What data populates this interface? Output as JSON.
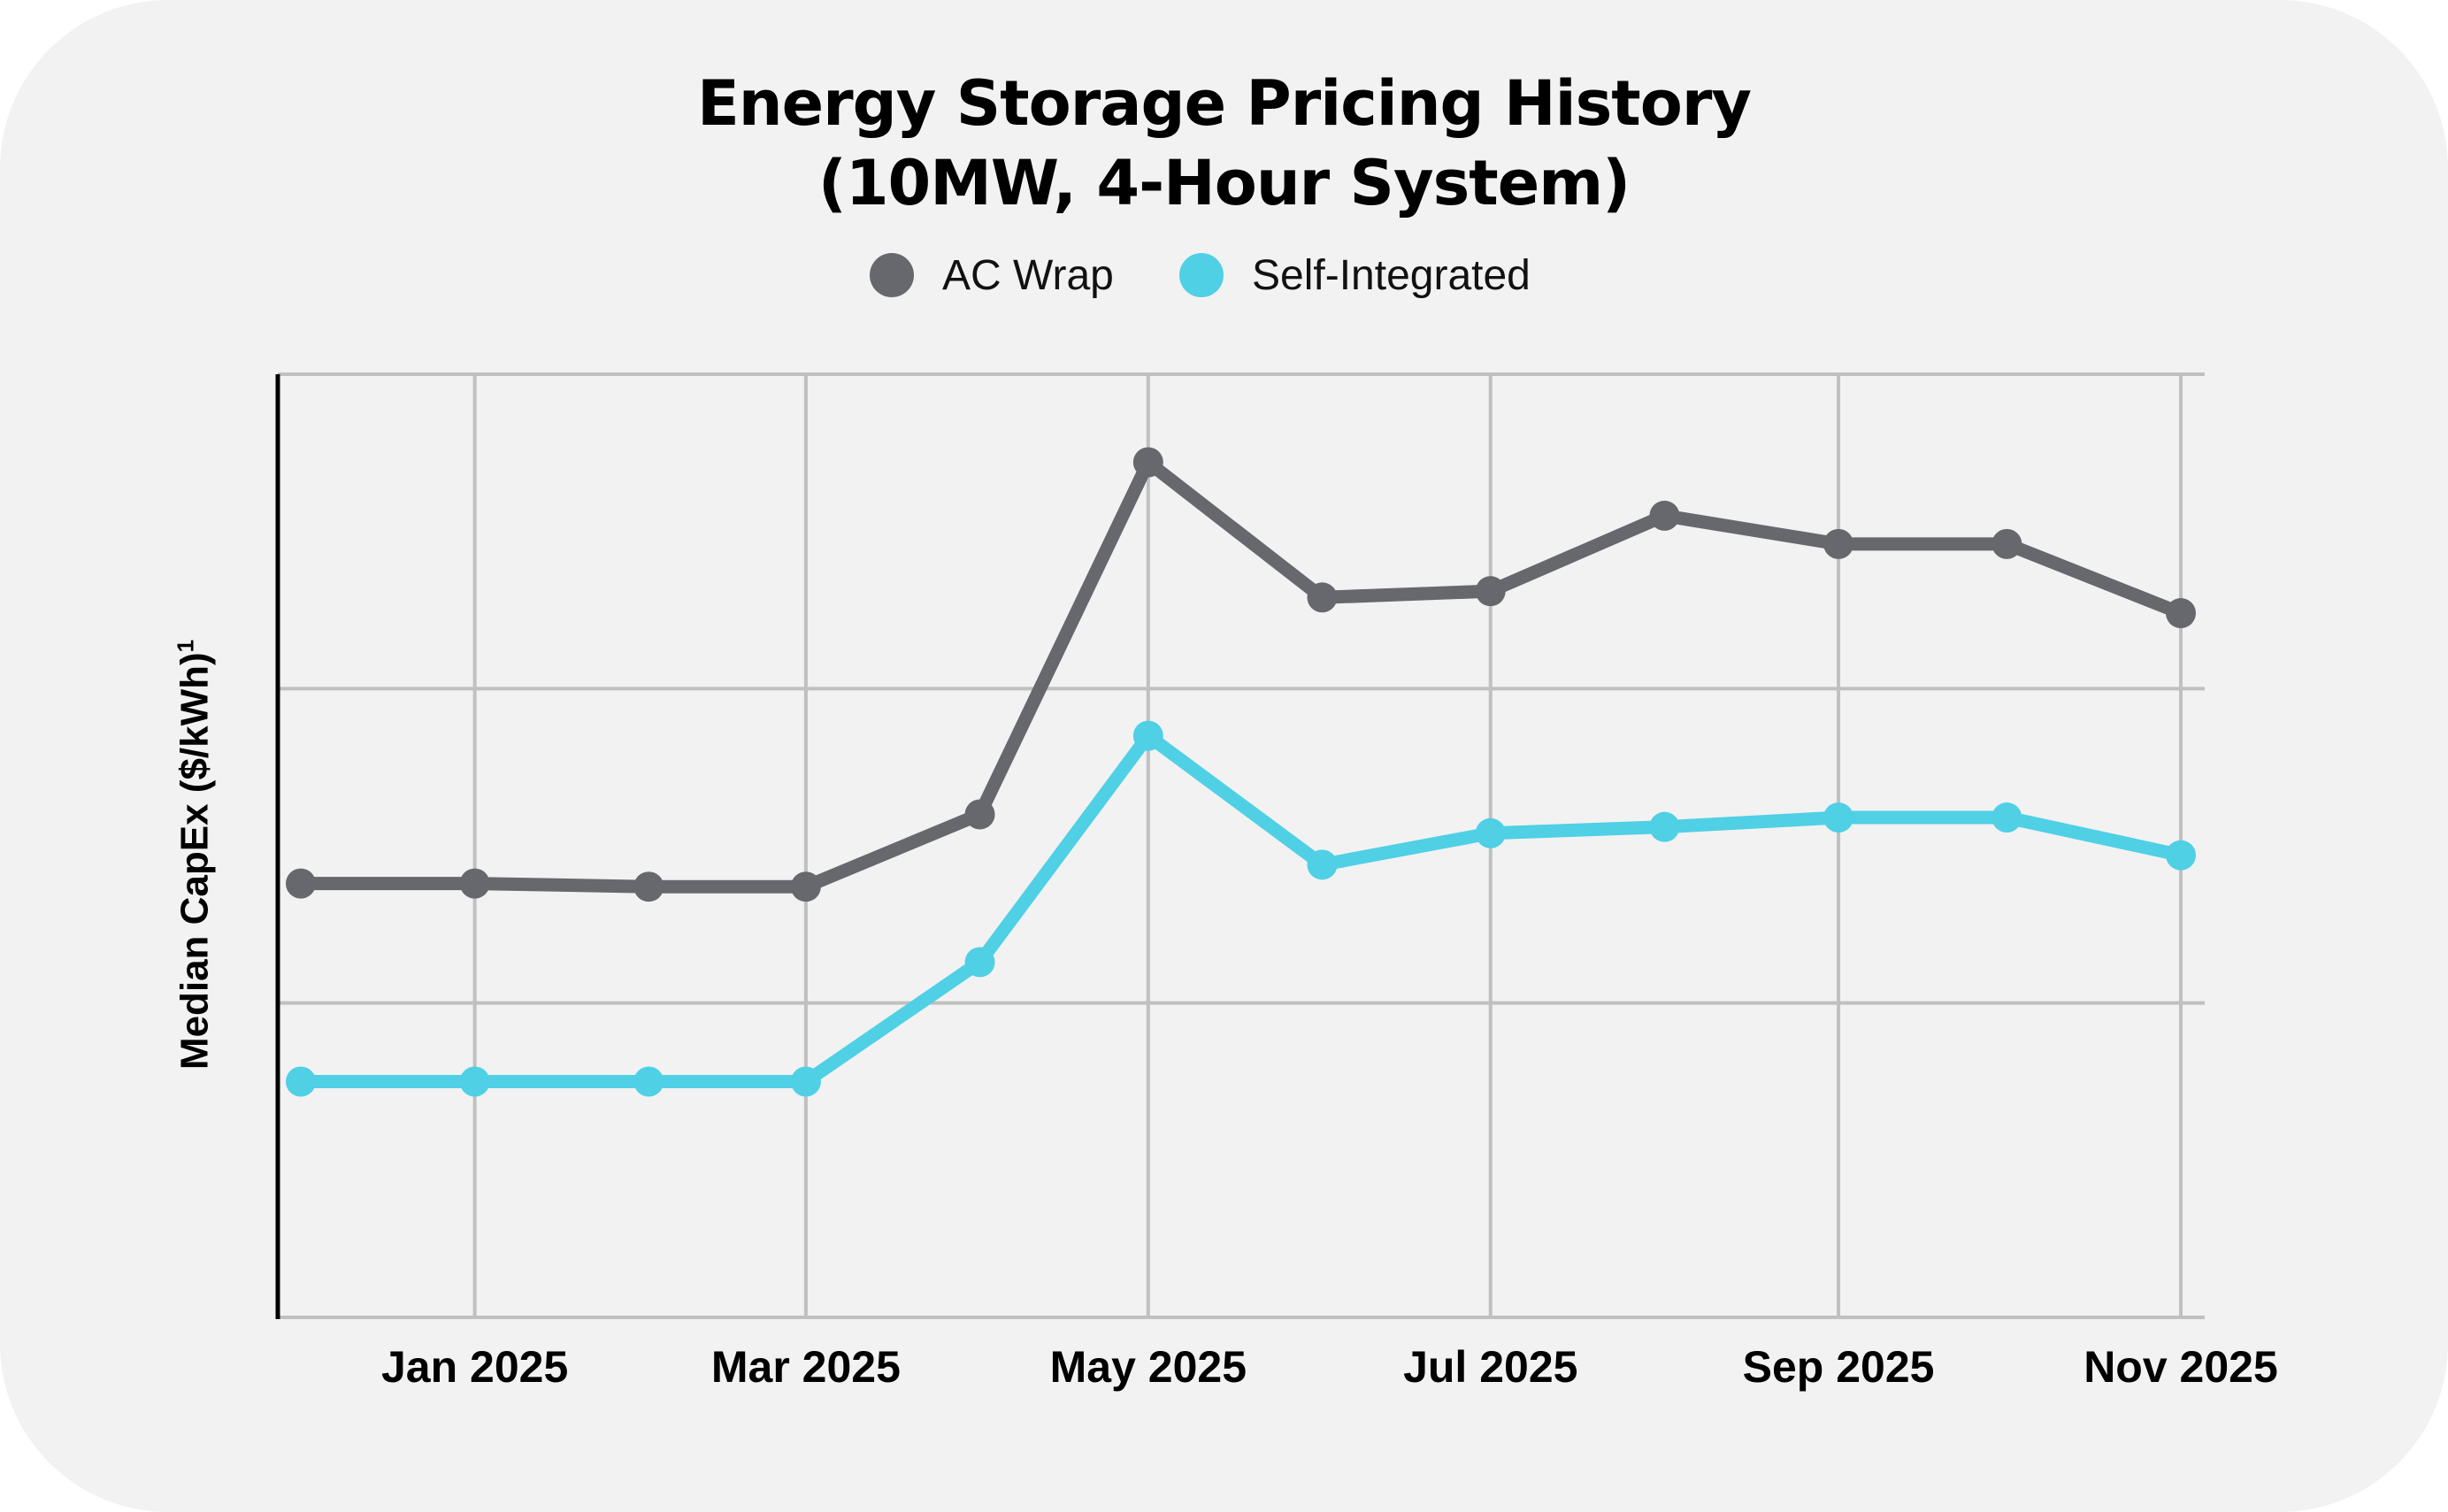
{
  "chart_data": {
    "type": "line",
    "title": [
      "Energy Storage Pricing History",
      "(10MW, 4-Hour System)"
    ],
    "xlabel": "",
    "ylabel": "Median CapEx ($/kWh)",
    "ylabel_footnote": "1",
    "y_units_note": "no y tick labels shown; values in gridline units (bottom axis = 0, each gridline = 1)",
    "ylim": [
      0,
      3
    ],
    "y_gridlines": [
      0,
      1,
      2,
      3
    ],
    "y_tick_labels": [],
    "x_dates": [
      "2024-12-01",
      "2025-01-01",
      "2025-02-01",
      "2025-03-01",
      "2025-04-01",
      "2025-05-01",
      "2025-06-01",
      "2025-07-01",
      "2025-08-01",
      "2025-09-01",
      "2025-10-01",
      "2025-11-01"
    ],
    "x_ticks": [
      {
        "date": "2025-01-01",
        "label": "Jan 2025"
      },
      {
        "date": "2025-03-01",
        "label": "Mar 2025"
      },
      {
        "date": "2025-05-01",
        "label": "May 2025"
      },
      {
        "date": "2025-07-01",
        "label": "Jul 2025"
      },
      {
        "date": "2025-09-01",
        "label": "Sep 2025"
      },
      {
        "date": "2025-11-01",
        "label": "Nov 2025"
      }
    ],
    "xlim": [
      "2024-12-01",
      "2025-11-01"
    ],
    "grid": true,
    "legend_position": "top-center",
    "series": [
      {
        "name": "AC Wrap",
        "color": "#67686d",
        "values": [
          1.38,
          1.38,
          1.37,
          1.37,
          1.6,
          2.72,
          2.29,
          2.31,
          2.55,
          2.46,
          2.46,
          2.24
        ]
      },
      {
        "name": "Self-Integrated",
        "color": "#4fd0e5",
        "values": [
          0.75,
          0.75,
          0.75,
          0.75,
          1.13,
          1.85,
          1.44,
          1.54,
          1.56,
          1.59,
          1.59,
          1.47
        ]
      }
    ]
  },
  "colors": {
    "background": "#f2f2f2",
    "grid": "#c0c0c0",
    "axis": "#000000"
  }
}
